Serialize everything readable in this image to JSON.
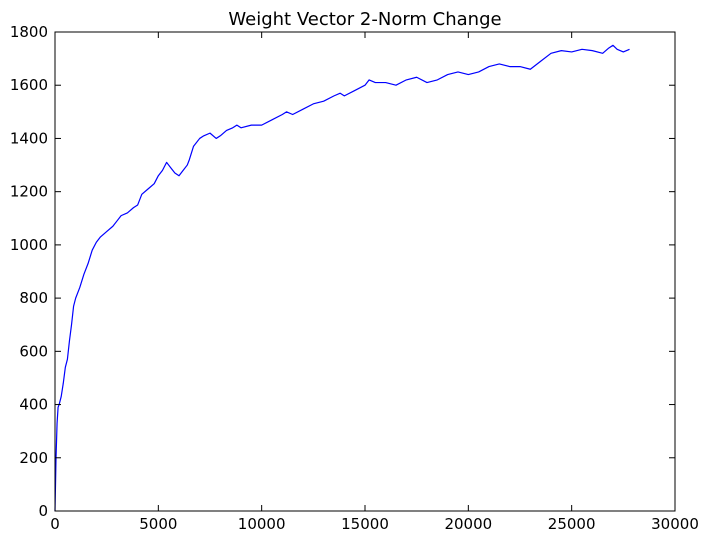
{
  "chart_data": {
    "type": "line",
    "title": "Weight Vector 2-Norm Change",
    "xlabel": "",
    "ylabel": "",
    "xlim": [
      0,
      30000
    ],
    "ylim": [
      0,
      1800
    ],
    "xticks": [
      0,
      5000,
      10000,
      15000,
      20000,
      25000,
      30000
    ],
    "yticks": [
      0,
      200,
      400,
      600,
      800,
      1000,
      1200,
      1400,
      1600,
      1800
    ],
    "grid": false,
    "series": [
      {
        "color": "#0000ff",
        "x": [
          0,
          50,
          100,
          150,
          200,
          300,
          400,
          500,
          600,
          700,
          800,
          900,
          1000,
          1200,
          1400,
          1600,
          1800,
          2000,
          2200,
          2500,
          2800,
          3000,
          3200,
          3500,
          3800,
          4000,
          4200,
          4500,
          4800,
          5000,
          5200,
          5400,
          5500,
          5600,
          5800,
          6000,
          6200,
          6400,
          6500,
          6700,
          7000,
          7200,
          7500,
          7800,
          8000,
          8300,
          8600,
          8800,
          9000,
          9500,
          10000,
          10500,
          11000,
          11200,
          11500,
          12000,
          12500,
          13000,
          13500,
          13800,
          14000,
          14500,
          15000,
          15200,
          15500,
          16000,
          16500,
          17000,
          17500,
          18000,
          18500,
          19000,
          19500,
          20000,
          20500,
          21000,
          21500,
          22000,
          22500,
          23000,
          23500,
          24000,
          24500,
          25000,
          25500,
          26000,
          26500,
          26800,
          27000,
          27200,
          27500,
          27800
        ],
        "y": [
          0,
          200,
          330,
          390,
          400,
          430,
          480,
          540,
          570,
          640,
          700,
          770,
          800,
          840,
          890,
          930,
          980,
          1010,
          1030,
          1050,
          1070,
          1090,
          1110,
          1120,
          1140,
          1150,
          1190,
          1210,
          1230,
          1260,
          1280,
          1310,
          1300,
          1290,
          1270,
          1260,
          1280,
          1300,
          1320,
          1370,
          1400,
          1410,
          1420,
          1400,
          1410,
          1430,
          1440,
          1450,
          1440,
          1450,
          1450,
          1470,
          1490,
          1500,
          1490,
          1510,
          1530,
          1540,
          1560,
          1570,
          1560,
          1580,
          1600,
          1620,
          1610,
          1610,
          1600,
          1620,
          1630,
          1610,
          1620,
          1640,
          1650,
          1640,
          1650,
          1670,
          1680,
          1670,
          1670,
          1660,
          1690,
          1720,
          1730,
          1725,
          1735,
          1730,
          1720,
          1740,
          1750,
          1735,
          1725,
          1735
        ]
      }
    ]
  }
}
